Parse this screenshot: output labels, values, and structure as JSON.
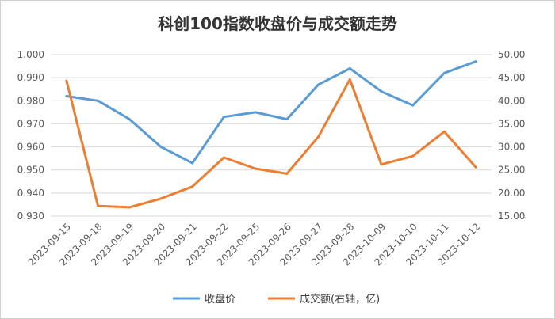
{
  "chart_data": {
    "type": "line",
    "title": "科创100指数收盘价与成交额走势",
    "categories": [
      "2023-09-15",
      "2023-09-18",
      "2023-09-19",
      "2023-09-20",
      "2023-09-21",
      "2023-09-22",
      "2023-09-25",
      "2023-09-26",
      "2023-09-27",
      "2023-09-28",
      "2023-10-09",
      "2023-10-10",
      "2023-10-11",
      "2023-10-12"
    ],
    "series": [
      {
        "name": "收盘价",
        "axis": "left",
        "color": "#5b9bd5",
        "values": [
          0.982,
          0.98,
          0.972,
          0.96,
          0.953,
          0.973,
          0.975,
          0.972,
          0.987,
          0.994,
          0.984,
          0.978,
          0.992,
          0.997
        ]
      },
      {
        "name": "成交额(右轴，亿)",
        "axis": "right",
        "color": "#ed7d31",
        "values": [
          44.3,
          17.2,
          16.9,
          18.8,
          21.4,
          27.7,
          25.3,
          24.2,
          32.2,
          44.6,
          26.2,
          28.0,
          33.3,
          25.6
        ]
      }
    ],
    "ylim_left": [
      0.93,
      1.0
    ],
    "yticks_left": [
      "0.930",
      "0.940",
      "0.950",
      "0.960",
      "0.970",
      "0.980",
      "0.990",
      "1.000"
    ],
    "ylim_right": [
      15.0,
      50.0
    ],
    "yticks_right": [
      "15.00",
      "20.00",
      "25.00",
      "30.00",
      "35.00",
      "40.00",
      "45.00",
      "50.00"
    ],
    "grid": true,
    "legend_position": "bottom"
  }
}
